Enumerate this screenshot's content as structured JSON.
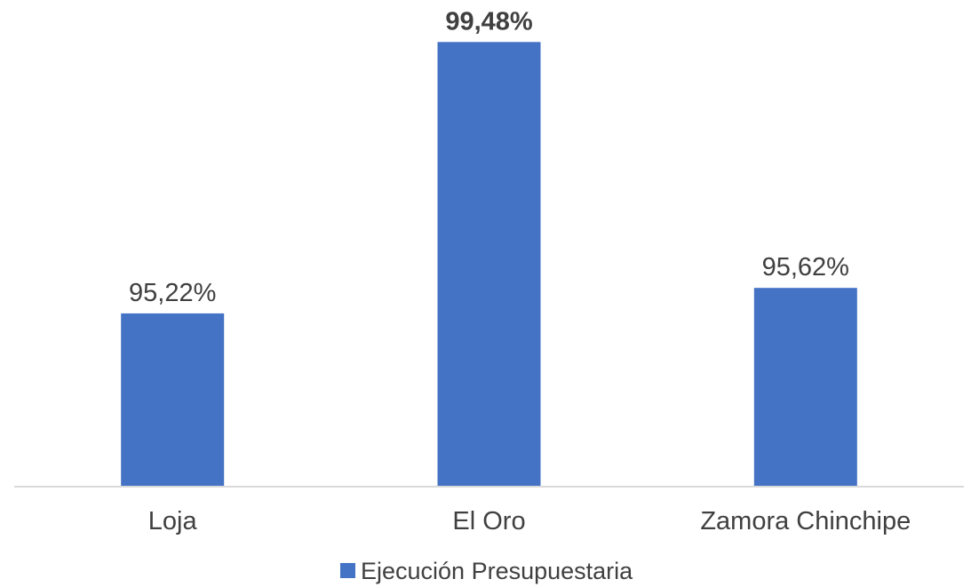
{
  "chart_data": {
    "type": "bar",
    "categories": [
      "Loja",
      "El Oro",
      "Zamora Chinchipe"
    ],
    "series": [
      {
        "name": "Ejecución Presupuestaria",
        "values": [
          95.22,
          99.48,
          95.62
        ],
        "color": "#4472C4"
      }
    ],
    "data_labels": [
      "95,22%",
      "99,48%",
      "95,62%"
    ],
    "highlight_index": 1,
    "title": "",
    "xlabel": "",
    "ylabel": "",
    "ylim": [
      92.5,
      100
    ],
    "grid": false,
    "legend_position": "bottom",
    "axis_color": "#D9D9D9"
  }
}
